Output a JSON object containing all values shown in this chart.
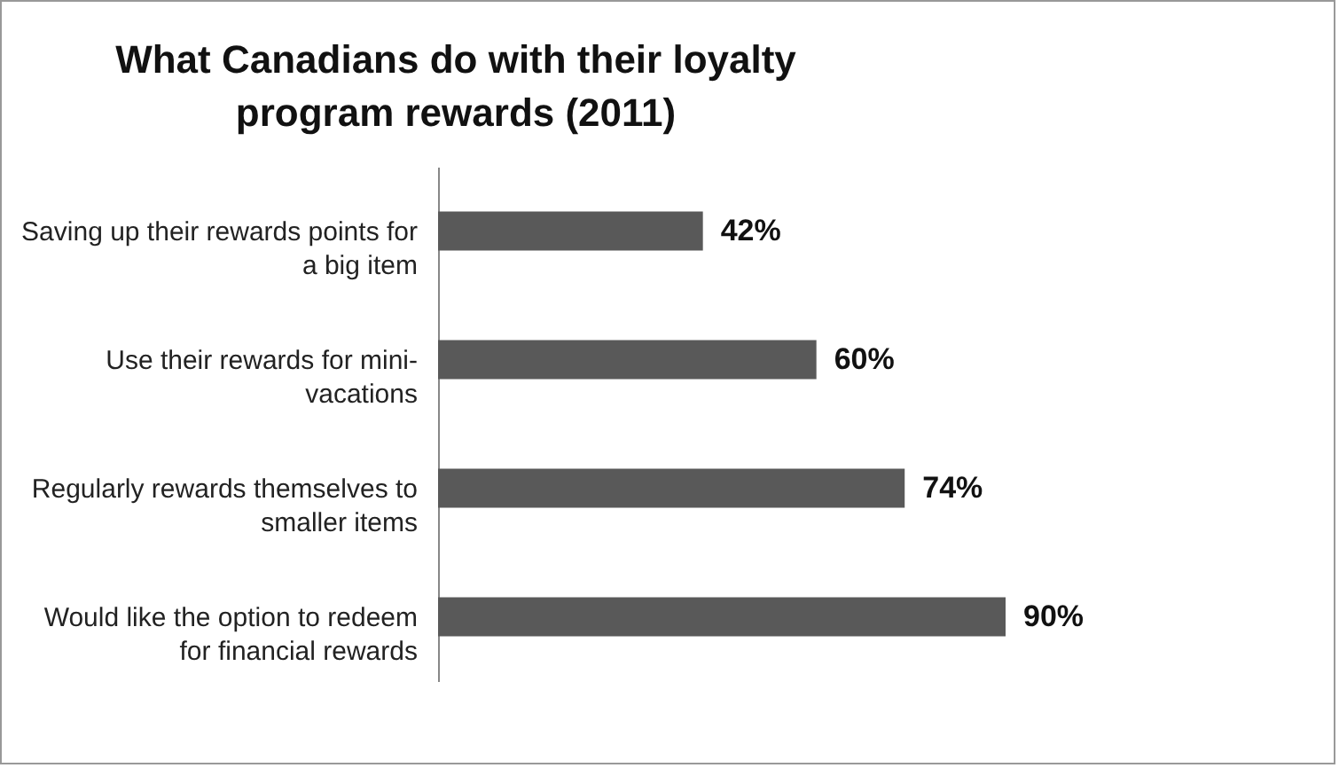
{
  "chart_data": {
    "type": "bar",
    "orientation": "horizontal",
    "title": "What Canadians do with their loyalty program rewards (2011)",
    "categories": [
      "Saving up their rewards points for a big item",
      "Use their rewards for mini-vacations",
      "Regularly rewards themselves to smaller items",
      "Would like the option to redeem for financial rewards"
    ],
    "values": [
      42,
      60,
      74,
      90
    ],
    "color": "#595959",
    "value_labels": [
      "42%",
      "60%",
      "74%",
      "90%"
    ]
  }
}
